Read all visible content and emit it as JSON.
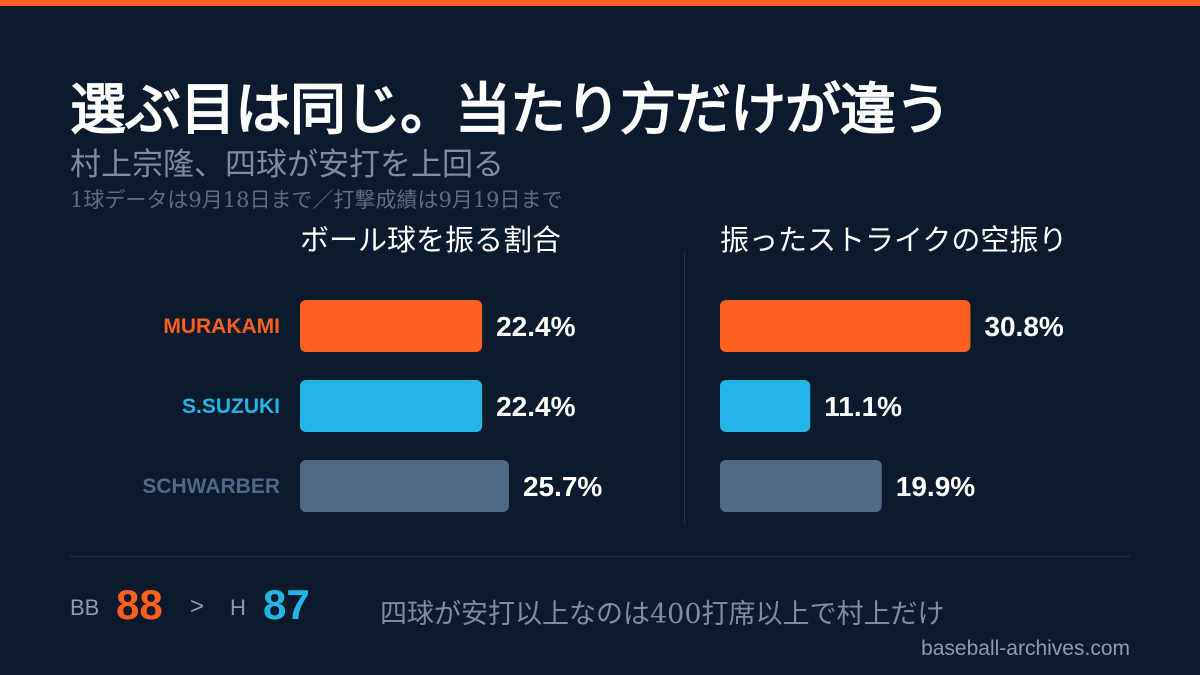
{
  "header": {
    "title": "選ぶ目は同じ。当たり方だけが違う",
    "subtitle": "村上宗隆、四球が安打を上回る",
    "note": "1球データは9月18日まで／打撃成績は9月19日まで"
  },
  "colors": {
    "accent": "#ff5f1f",
    "murakami": "#ff5f1f",
    "suzuki": "#22b5e6",
    "schwarber": "#4f6a88",
    "background": "#0c1a2e"
  },
  "chart_data": [
    {
      "type": "bar",
      "orientation": "horizontal",
      "title": "ボール球を振る割合",
      "categories": [
        "MURAKAMI",
        "S.SUZUKI",
        "SCHWARBER"
      ],
      "values": [
        22.4,
        22.4,
        25.7
      ],
      "value_labels": [
        "22.4%",
        "22.4%",
        "25.7%"
      ],
      "unit": "%",
      "xlim": [
        0,
        40
      ],
      "grid": false
    },
    {
      "type": "bar",
      "orientation": "horizontal",
      "title": "振ったストライクの空振り",
      "categories": [
        "MURAKAMI",
        "S.SUZUKI",
        "SCHWARBER"
      ],
      "values": [
        30.8,
        11.1,
        19.9
      ],
      "value_labels": [
        "30.8%",
        "11.1%",
        "19.9%"
      ],
      "unit": "%",
      "xlim": [
        0,
        40
      ],
      "grid": false
    }
  ],
  "players": [
    {
      "name": "MURAKAMI",
      "color": "#ff5f1f"
    },
    {
      "name": "S.SUZUKI",
      "color": "#22b5e6"
    },
    {
      "name": "SCHWARBER",
      "color": "#4f6a88"
    }
  ],
  "footer": {
    "bb_label": "BB",
    "bb_value": "88",
    "comparator": ">",
    "h_label": "H",
    "h_value": "87",
    "note": "四球が安打以上なのは400打席以上で村上だけ",
    "source": "baseball-archives.com"
  }
}
